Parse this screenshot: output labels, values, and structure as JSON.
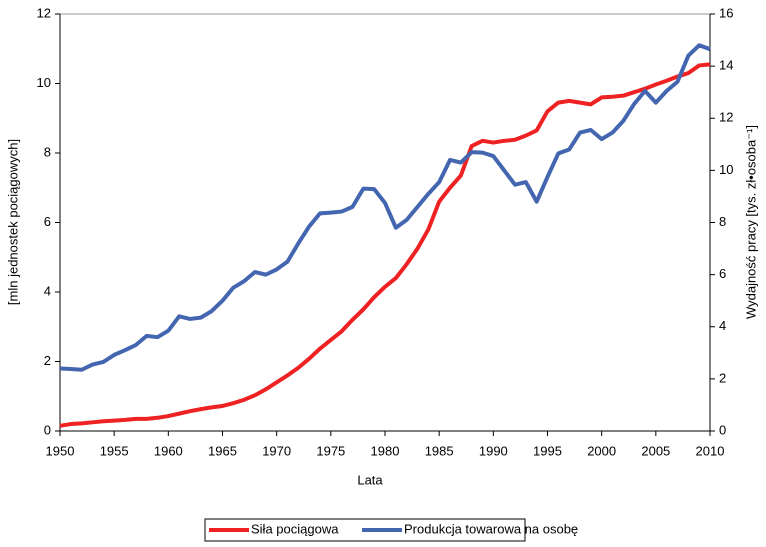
{
  "chart_data": {
    "type": "line",
    "x_label": "Lata",
    "y_label": "[mln jednostek pociągowych]",
    "y2_label": "Wydajność pracy [tys. zł•osoba⁻¹]",
    "x": [
      1950,
      1951,
      1952,
      1953,
      1954,
      1955,
      1956,
      1957,
      1958,
      1959,
      1960,
      1961,
      1962,
      1963,
      1964,
      1965,
      1966,
      1967,
      1968,
      1969,
      1970,
      1971,
      1972,
      1973,
      1974,
      1975,
      1976,
      1977,
      1978,
      1979,
      1980,
      1981,
      1982,
      1983,
      1984,
      1985,
      1986,
      1987,
      1988,
      1989,
      1990,
      1991,
      1992,
      1993,
      1994,
      1995,
      1996,
      1997,
      1998,
      1999,
      2000,
      2001,
      2002,
      2003,
      2004,
      2005,
      2006,
      2007,
      2008,
      2009,
      2010
    ],
    "xlim": [
      1950,
      2010
    ],
    "xticks": [
      1950,
      1955,
      1960,
      1965,
      1970,
      1975,
      1980,
      1985,
      1990,
      1995,
      2000,
      2005,
      2010
    ],
    "ylim": [
      0,
      12
    ],
    "yticks": [
      0,
      2,
      4,
      6,
      8,
      10,
      12
    ],
    "y2lim": [
      0,
      16
    ],
    "y2ticks": [
      0,
      2,
      4,
      6,
      8,
      10,
      12,
      14,
      16
    ],
    "series": [
      {
        "name": "Siła pociągowa",
        "color": "#ee2222",
        "axis": "y",
        "values": [
          0.15,
          0.2,
          0.22,
          0.25,
          0.28,
          0.3,
          0.32,
          0.35,
          0.35,
          0.38,
          0.43,
          0.5,
          0.57,
          0.63,
          0.68,
          0.72,
          0.8,
          0.9,
          1.03,
          1.2,
          1.4,
          1.6,
          1.82,
          2.08,
          2.37,
          2.62,
          2.87,
          3.2,
          3.5,
          3.85,
          4.15,
          4.4,
          4.8,
          5.25,
          5.8,
          6.6,
          7.0,
          7.35,
          8.2,
          8.35,
          8.3,
          8.35,
          8.38,
          8.5,
          8.65,
          9.2,
          9.45,
          9.5,
          9.45,
          9.4,
          9.6,
          9.62,
          9.65,
          9.75,
          9.85,
          9.97,
          10.08,
          10.2,
          10.3,
          10.52,
          10.55
        ]
      },
      {
        "name": "Produkcja towarowa na osobę",
        "color": "#4466b0",
        "axis": "y2",
        "values": [
          2.4,
          2.38,
          2.35,
          2.55,
          2.65,
          2.92,
          3.1,
          3.3,
          3.65,
          3.6,
          3.85,
          4.4,
          4.3,
          4.35,
          4.6,
          5.0,
          5.5,
          5.75,
          6.1,
          6.0,
          6.2,
          6.5,
          7.2,
          7.85,
          8.35,
          8.38,
          8.42,
          8.6,
          9.3,
          9.28,
          8.75,
          7.8,
          8.1,
          8.6,
          9.1,
          9.55,
          10.4,
          10.3,
          10.7,
          10.68,
          10.55,
          10.0,
          9.45,
          9.55,
          8.8,
          9.75,
          10.65,
          10.8,
          11.45,
          11.55,
          11.2,
          11.45,
          11.9,
          12.55,
          13.05,
          12.6,
          13.05,
          13.4,
          14.4,
          14.8,
          14.65
        ]
      }
    ]
  }
}
